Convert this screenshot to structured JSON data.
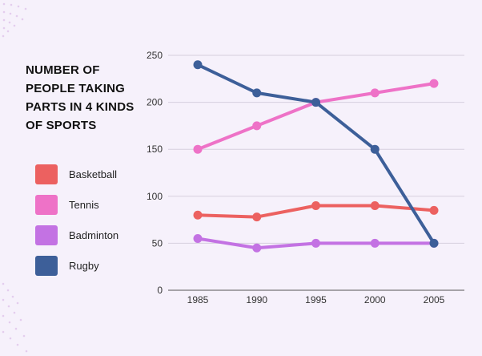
{
  "chart_data": {
    "type": "line",
    "title": "NUMBER OF PEOPLE TAKING PARTS IN 4 KINDS OF SPORTS",
    "categories": [
      "1985",
      "1990",
      "1995",
      "2000",
      "2005"
    ],
    "series": [
      {
        "name": "Basketball",
        "color": "#ec6160",
        "values": [
          80,
          78,
          90,
          90,
          85
        ]
      },
      {
        "name": "Tennis",
        "color": "#ee72c7",
        "values": [
          150,
          175,
          200,
          210,
          220
        ]
      },
      {
        "name": "Badminton",
        "color": "#c372e3",
        "values": [
          55,
          45,
          50,
          50,
          50
        ]
      },
      {
        "name": "Rugby",
        "color": "#3d5f99",
        "values": [
          240,
          210,
          200,
          150,
          50
        ]
      }
    ],
    "yticks": [
      "0",
      "50",
      "100",
      "150",
      "200",
      "250"
    ],
    "ylim": [
      0,
      250
    ],
    "grid": true,
    "legend_position": "left"
  }
}
